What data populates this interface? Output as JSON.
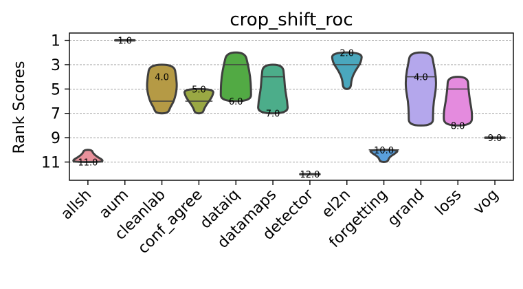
{
  "chart_data": {
    "type": "violin",
    "title": "crop_shift_roc",
    "xlabel": "",
    "ylabel": "Rank Scores",
    "ylim": [
      12.5,
      0.4
    ],
    "y_inverted": true,
    "yticks": [
      1,
      3,
      5,
      7,
      9,
      11
    ],
    "ytick_labels": [
      "1",
      "3",
      "5",
      "7",
      "9",
      "11"
    ],
    "grid": true,
    "categories": [
      "allsh",
      "aum",
      "cleanlab",
      "conf_agree",
      "dataiq",
      "datamaps",
      "detector",
      "el2n",
      "forgetting",
      "grand",
      "loss",
      "vog"
    ],
    "series": [
      {
        "name": "allsh",
        "min": 10,
        "max": 11,
        "median": 11,
        "label": "11.0",
        "color": "#e8919b",
        "profile": [
          [
            10,
            0.25
          ],
          [
            10.3,
            0.35
          ],
          [
            10.6,
            0.65
          ],
          [
            10.85,
            1.0
          ],
          [
            11,
            0.9
          ]
        ]
      },
      {
        "name": "aum",
        "min": 1,
        "max": 1,
        "median": 1,
        "label": "1.0",
        "color": "#d99d56",
        "profile": []
      },
      {
        "name": "cleanlab",
        "min": 3,
        "max": 7,
        "median": 6,
        "label": "4.0",
        "color": "#b59a45",
        "profile": [
          [
            3,
            0.8
          ],
          [
            4,
            0.95
          ],
          [
            5,
            1.0
          ],
          [
            6,
            0.8
          ],
          [
            6.5,
            0.55
          ],
          [
            7,
            0.4
          ]
        ]
      },
      {
        "name": "conf_agree",
        "min": 5,
        "max": 7,
        "median": 6,
        "label": "5.0",
        "color": "#9aa843",
        "profile": [
          [
            5,
            1.0
          ],
          [
            5.6,
            0.9
          ],
          [
            6.2,
            0.55
          ],
          [
            6.6,
            0.35
          ],
          [
            7,
            0.25
          ]
        ]
      },
      {
        "name": "dataiq",
        "min": 2,
        "max": 6,
        "median": 3,
        "label": "6.0",
        "color": "#52aa44",
        "profile": [
          [
            2,
            0.6
          ],
          [
            3,
            0.8
          ],
          [
            4,
            0.95
          ],
          [
            5,
            1.0
          ],
          [
            6,
            1.0
          ]
        ]
      },
      {
        "name": "datamaps",
        "min": 3,
        "max": 7,
        "median": 4,
        "label": "7.0",
        "color": "#4cad8a",
        "profile": [
          [
            3,
            0.65
          ],
          [
            4,
            0.75
          ],
          [
            5,
            0.8
          ],
          [
            6,
            0.95
          ],
          [
            7,
            1.0
          ]
        ]
      },
      {
        "name": "detector",
        "min": 12,
        "max": 12,
        "median": 12,
        "label": "12.0",
        "color": "#4fa9a0",
        "profile": []
      },
      {
        "name": "el2n",
        "min": 2,
        "max": 5,
        "median": 3,
        "label": "2.0",
        "color": "#4aa7bd",
        "profile": [
          [
            2,
            1.0
          ],
          [
            2.8,
            0.95
          ],
          [
            3.5,
            0.55
          ],
          [
            4.2,
            0.3
          ],
          [
            5,
            0.25
          ]
        ]
      },
      {
        "name": "forgetting",
        "min": 10,
        "max": 11,
        "median": 10,
        "label": "10.0",
        "color": "#5aa0dd",
        "profile": [
          [
            10,
            1.0
          ],
          [
            10.3,
            0.75
          ],
          [
            10.6,
            0.35
          ],
          [
            11,
            0.25
          ]
        ]
      },
      {
        "name": "grand",
        "min": 2,
        "max": 8,
        "median": 4,
        "label": "4.0",
        "color": "#b4a7ec",
        "profile": [
          [
            2,
            0.7
          ],
          [
            3,
            0.85
          ],
          [
            4,
            1.0
          ],
          [
            5,
            1.0
          ],
          [
            6,
            0.85
          ],
          [
            7,
            0.8
          ],
          [
            8,
            0.8
          ]
        ]
      },
      {
        "name": "loss",
        "min": 4,
        "max": 8,
        "median": 5,
        "label": "8.0",
        "color": "#e48bde",
        "profile": [
          [
            4,
            0.65
          ],
          [
            5,
            0.7
          ],
          [
            6,
            0.8
          ],
          [
            7,
            0.95
          ],
          [
            8,
            0.9
          ]
        ]
      },
      {
        "name": "vog",
        "min": 9,
        "max": 9,
        "median": 9,
        "label": "9.0",
        "color": "#ea86a8",
        "profile": []
      }
    ]
  }
}
